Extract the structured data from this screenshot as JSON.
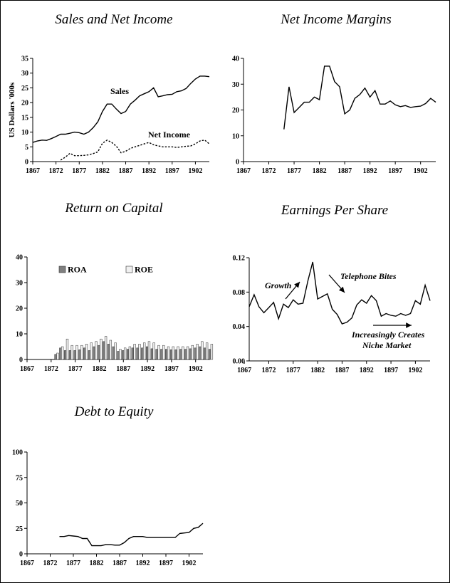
{
  "chart_data": [
    {
      "id": "sales",
      "type": "line",
      "title": "Sales and Net Income",
      "ylabel": "US Dollars '000s",
      "xlabel": "",
      "xlim": [
        1867,
        1905
      ],
      "ylim": [
        0,
        35
      ],
      "x_ticks": [
        "1867",
        "1872",
        "1877",
        "1882",
        "1887",
        "1892",
        "1897",
        "1902"
      ],
      "y_ticks": [
        "0",
        "5",
        "10",
        "15",
        "20",
        "25",
        "30",
        "35"
      ],
      "series": [
        {
          "name": "Sales",
          "style": "solid",
          "x": [
            1867,
            1868,
            1869,
            1870,
            1871,
            1872,
            1873,
            1874,
            1875,
            1876,
            1877,
            1878,
            1879,
            1880,
            1881,
            1882,
            1883,
            1884,
            1885,
            1886,
            1887,
            1888,
            1889,
            1890,
            1891,
            1892,
            1893,
            1894,
            1895,
            1896,
            1897,
            1898,
            1899,
            1900,
            1901,
            1902,
            1903,
            1904,
            1905
          ],
          "y": [
            6.5,
            7,
            7.3,
            7.2,
            7.8,
            8.5,
            9.3,
            9.3,
            9.6,
            10,
            9.8,
            9.3,
            10,
            11.5,
            13.5,
            17,
            19.5,
            19.5,
            17.8,
            16.3,
            17,
            19.5,
            20.8,
            22.3,
            23,
            23.7,
            25,
            22,
            22.3,
            22.7,
            22.8,
            23.7,
            24,
            24.8,
            26.5,
            28,
            29,
            29,
            28.8
          ]
        },
        {
          "name": "Net Income",
          "style": "dashed",
          "x": [
            1873,
            1874,
            1875,
            1876,
            1877,
            1878,
            1879,
            1880,
            1881,
            1882,
            1883,
            1884,
            1885,
            1886,
            1887,
            1888,
            1889,
            1890,
            1891,
            1892,
            1893,
            1894,
            1895,
            1896,
            1897,
            1898,
            1899,
            1900,
            1901,
            1902,
            1903,
            1904,
            1905
          ],
          "y": [
            0.5,
            1.5,
            2.8,
            2,
            2,
            2.1,
            2.3,
            2.7,
            3.3,
            6.2,
            7.3,
            6.5,
            5.2,
            3,
            3.5,
            4.5,
            5,
            5.5,
            6,
            6.5,
            5.7,
            5.3,
            5,
            5,
            5,
            4.8,
            5,
            5.2,
            5.3,
            6,
            7,
            7.3,
            6
          ]
        }
      ],
      "annotations": [
        "Sales",
        "Net Income"
      ]
    },
    {
      "id": "margins",
      "type": "line",
      "title": "Net Income Margins",
      "xlabel": "",
      "ylabel": "",
      "xlim": [
        1867,
        1905
      ],
      "ylim": [
        0,
        40
      ],
      "x_ticks": [
        "1867",
        "1872",
        "1877",
        "1882",
        "1887",
        "1892",
        "1897",
        "1902"
      ],
      "y_ticks": [
        "0",
        "10",
        "20",
        "30",
        "40"
      ],
      "series": [
        {
          "name": "",
          "style": "solid",
          "x": [
            1875,
            1876,
            1877,
            1878,
            1879,
            1880,
            1881,
            1882,
            1883,
            1884,
            1885,
            1886,
            1887,
            1888,
            1889,
            1890,
            1891,
            1892,
            1893,
            1894,
            1895,
            1896,
            1897,
            1898,
            1899,
            1900,
            1901,
            1902,
            1903,
            1904,
            1905
          ],
          "y": [
            12.5,
            29,
            19,
            21,
            23,
            23,
            25,
            24,
            37,
            37,
            31,
            29,
            18.5,
            20,
            24.5,
            26,
            28.5,
            25,
            27.5,
            22.3,
            22.3,
            23.5,
            22,
            21.3,
            21.7,
            21,
            21.3,
            21.5,
            22.5,
            24.5,
            23
          ]
        }
      ]
    },
    {
      "id": "roc",
      "type": "bar",
      "title": "Return on Capital",
      "xlabel": "",
      "ylabel": "",
      "xlim": [
        1867,
        1905
      ],
      "ylim": [
        0,
        40
      ],
      "x_ticks": [
        "1867",
        "1872",
        "1877",
        "1882",
        "1887",
        "1892",
        "1897",
        "1902"
      ],
      "y_ticks": [
        "0",
        "10",
        "20",
        "30",
        "40"
      ],
      "legend_position": "top",
      "x": [
        1873,
        1874,
        1875,
        1876,
        1877,
        1878,
        1879,
        1880,
        1881,
        1882,
        1883,
        1884,
        1885,
        1886,
        1887,
        1888,
        1889,
        1890,
        1891,
        1892,
        1893,
        1894,
        1895,
        1896,
        1897,
        1898,
        1899,
        1900,
        1901,
        1902,
        1903,
        1904,
        1905
      ],
      "series": [
        {
          "name": "ROA",
          "color": "#7f7f7f",
          "values": [
            2,
            4.5,
            3.5,
            3.5,
            3.5,
            3.8,
            4.5,
            3.5,
            5,
            5.5,
            7,
            6,
            5,
            3.2,
            3.5,
            4,
            4.5,
            4.5,
            4.5,
            5,
            4.2,
            4,
            4,
            4,
            3.8,
            3.8,
            4,
            4,
            4.2,
            4.5,
            5,
            4.5,
            4
          ]
        },
        {
          "name": "ROE",
          "color": "#f0f0f0",
          "values": [
            2.5,
            5,
            8,
            5.5,
            5.5,
            5.5,
            6,
            6.5,
            7,
            8,
            9,
            7.5,
            6.5,
            4,
            4.5,
            5,
            6,
            6,
            6.5,
            7,
            6.5,
            5.5,
            5.5,
            5,
            5,
            5,
            5,
            5,
            5.5,
            6,
            7,
            6.5,
            6
          ]
        }
      ]
    },
    {
      "id": "eps",
      "type": "line",
      "title": "Earnings Per Share",
      "xlabel": "",
      "ylabel": "",
      "xlim": [
        1868,
        1905
      ],
      "ylim": [
        0,
        0.12
      ],
      "x_ticks": [
        "1867",
        "1872",
        "1877",
        "1882",
        "1887",
        "1892",
        "1897",
        "1902"
      ],
      "y_ticks": [
        "0.00",
        "0.04",
        "0.08",
        "0.12"
      ],
      "series": [
        {
          "name": "",
          "style": "solid",
          "x": [
            1868,
            1869,
            1870,
            1871,
            1872,
            1873,
            1874,
            1875,
            1876,
            1877,
            1878,
            1879,
            1880,
            1881,
            1882,
            1883,
            1884,
            1885,
            1886,
            1887,
            1888,
            1889,
            1890,
            1891,
            1892,
            1893,
            1894,
            1895,
            1896,
            1897,
            1898,
            1899,
            1900,
            1901,
            1902,
            1903,
            1904,
            1905
          ],
          "y": [
            0.063,
            0.077,
            0.063,
            0.056,
            0.062,
            0.068,
            0.049,
            0.066,
            0.062,
            0.071,
            0.066,
            0.067,
            0.093,
            0.115,
            0.072,
            0.075,
            0.078,
            0.06,
            0.054,
            0.043,
            0.045,
            0.05,
            0.065,
            0.071,
            0.067,
            0.076,
            0.07,
            0.052,
            0.055,
            0.053,
            0.052,
            0.055,
            0.053,
            0.055,
            0.07,
            0.066,
            0.088,
            0.07
          ]
        }
      ],
      "annotations": [
        "Growth",
        "Telephone Bites",
        "Increasingly Creates",
        "Niche Market"
      ]
    },
    {
      "id": "de",
      "type": "line",
      "title": "Debt to Equity",
      "xlabel": "",
      "ylabel": "",
      "xlim": [
        1867,
        1905
      ],
      "ylim": [
        0,
        100
      ],
      "x_ticks": [
        "1867",
        "1872",
        "1877",
        "1882",
        "1887",
        "1892",
        "1897",
        "1902"
      ],
      "y_ticks": [
        "0",
        "25",
        "50",
        "75",
        "100"
      ],
      "series": [
        {
          "name": "",
          "style": "solid",
          "x": [
            1874,
            1875,
            1876,
            1877,
            1878,
            1879,
            1880,
            1881,
            1882,
            1883,
            1884,
            1885,
            1886,
            1887,
            1888,
            1889,
            1890,
            1891,
            1892,
            1893,
            1894,
            1895,
            1896,
            1897,
            1898,
            1899,
            1900,
            1901,
            1902,
            1903,
            1904,
            1905
          ],
          "y": [
            17,
            17,
            18,
            17.5,
            17,
            15,
            15,
            8,
            8,
            8,
            9,
            9,
            8.5,
            8.5,
            11,
            15,
            17,
            17,
            17,
            16,
            16,
            16,
            16,
            16,
            16,
            16,
            20,
            20.5,
            21,
            25,
            26,
            30
          ]
        }
      ]
    }
  ]
}
